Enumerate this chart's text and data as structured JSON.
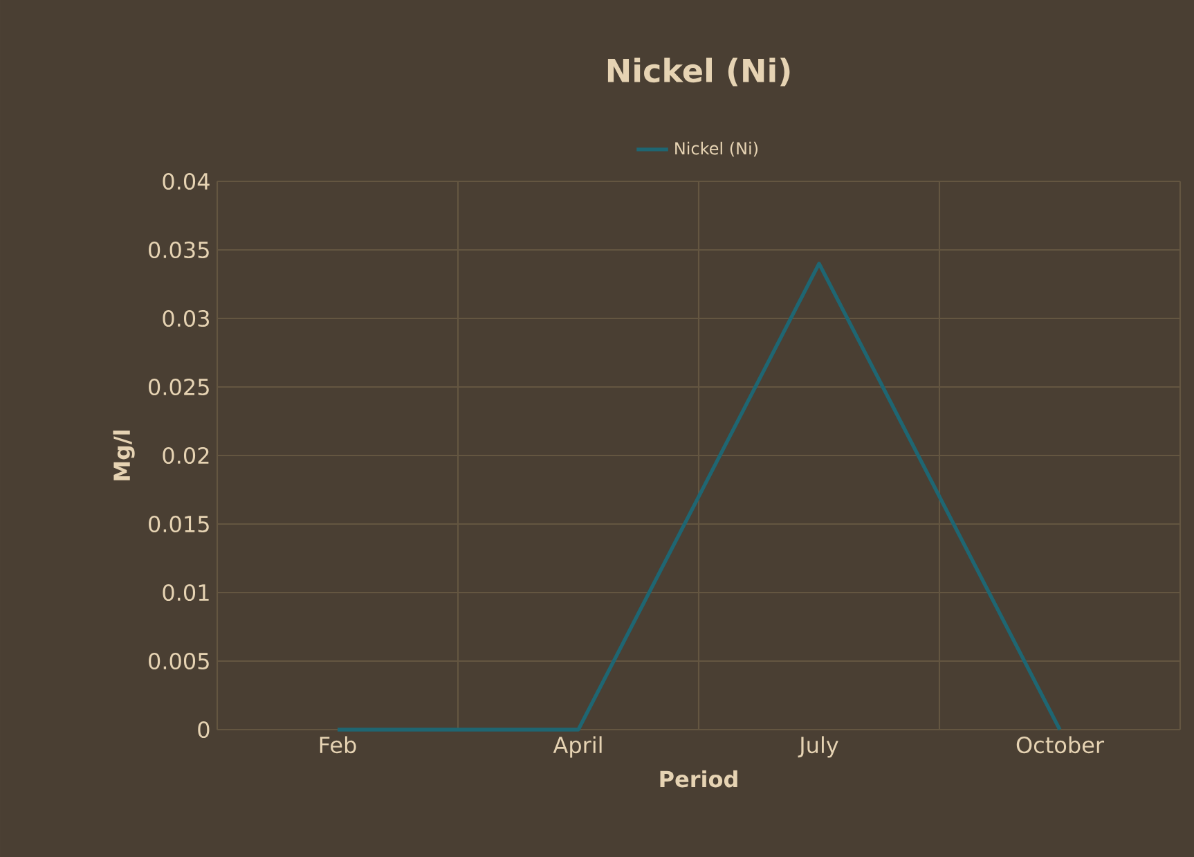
{
  "chart_data": {
    "type": "line",
    "title": "Nickel (Ni)",
    "xlabel": "Period",
    "ylabel": "Mg/l",
    "categories": [
      "Feb",
      "April",
      "July",
      "October"
    ],
    "series": [
      {
        "name": "Nickel (Ni)",
        "color": "#1f6672",
        "values": [
          0,
          0,
          0.034,
          0
        ]
      }
    ],
    "ylim": [
      0,
      0.04
    ],
    "yticks": [
      0,
      0.005,
      0.01,
      0.015,
      0.02,
      0.025,
      0.03,
      0.035,
      0.04
    ],
    "grid": true,
    "legend": "top",
    "marker": "none",
    "line_style": "solid"
  }
}
